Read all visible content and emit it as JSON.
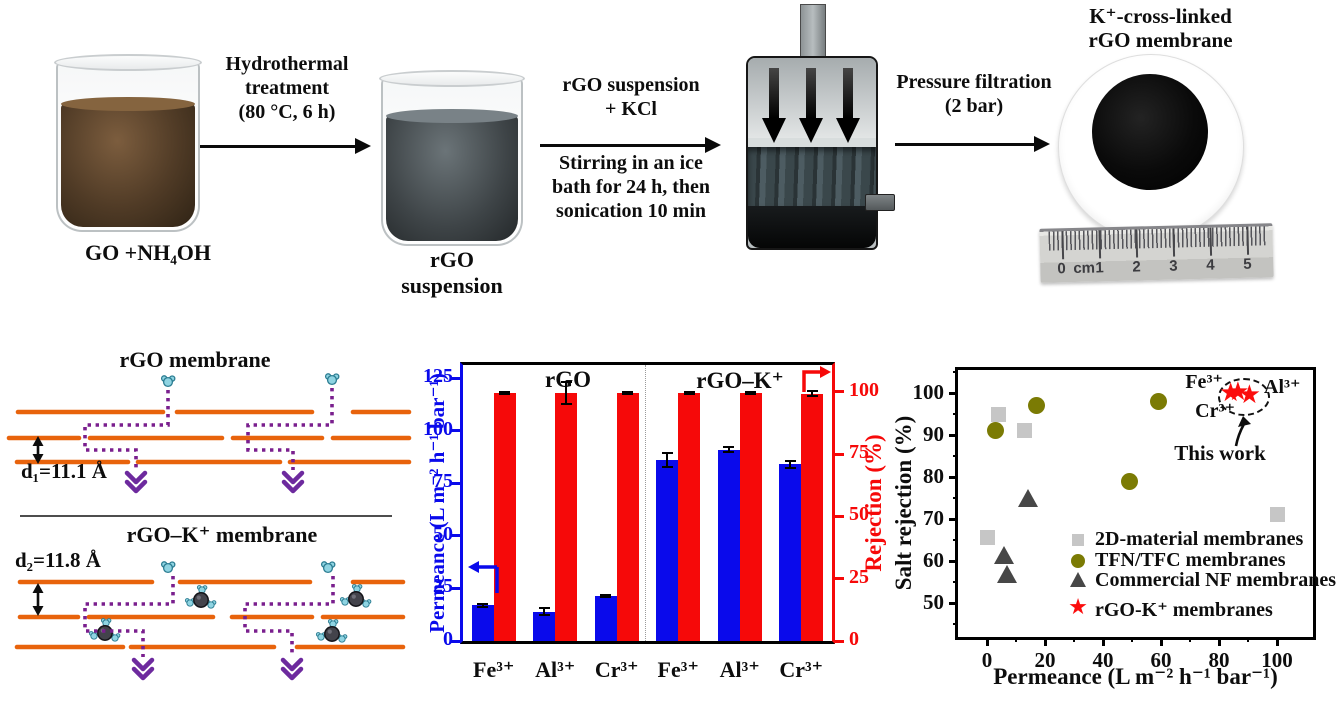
{
  "top_row": {
    "beaker1_label": "GO +NH₄OH",
    "arrow1_lines": [
      "Hydrothermal",
      "treatment",
      "(80 °C, 6 h)"
    ],
    "beaker2_label": "rGO suspension",
    "arrow2_top_lines": [
      "rGO suspension",
      "+  KCl"
    ],
    "arrow2_bottom_lines": [
      "Stirring in an ice",
      "bath for 24 h, then",
      "sonication 10 min"
    ],
    "arrow3_lines": [
      "Pressure filtration",
      "(2 bar)"
    ],
    "product_title_lines": [
      "K⁺-cross-linked",
      "rGO membrane"
    ],
    "ruler_labels": [
      "0",
      "cm",
      "1",
      "2",
      "3",
      "4",
      "5"
    ]
  },
  "schematic": {
    "top_title": "rGO membrane",
    "top_spacing_label": "d₁=11.1 Å",
    "bottom_title": "rGO–K⁺ membrane",
    "bottom_spacing_label": "d₂=11.8 Å",
    "colors": {
      "sheet_orange": "#e8630c",
      "path_purple": "#7a1f8e",
      "water_teal": "#8fd4e2",
      "potassium_dark": "#43434b"
    }
  },
  "chart_data": [
    {
      "id": "permeance-rejection-bars",
      "type": "bar",
      "group_labels": [
        "rGO",
        "rGO–K⁺"
      ],
      "categories": [
        "Fe³⁺",
        "Al³⁺",
        "Cr³⁺",
        "Fe³⁺",
        "Al³⁺",
        "Cr³⁺"
      ],
      "series": [
        {
          "name": "Permeance",
          "axis": "left",
          "color": "#0a0aeb",
          "values": [
            17,
            14,
            21.5,
            86,
            91,
            84
          ],
          "errors": [
            0.8,
            1.5,
            0.4,
            3.5,
            1.2,
            1.8
          ]
        },
        {
          "name": "Rejection",
          "axis": "right",
          "color": "#f60909",
          "values": [
            99.5,
            99.5,
            99.7,
            99.6,
            99.6,
            99.3
          ],
          "errors": [
            0.5,
            4.5,
            0.4,
            0.5,
            0.5,
            0.9
          ]
        }
      ],
      "left_axis": {
        "label": "Permeance (L m⁻² h⁻¹ bar⁻¹)",
        "ticks": [
          0,
          25,
          50,
          75,
          100,
          125
        ],
        "color": "#0a0aeb"
      },
      "right_axis": {
        "label": "Rejection (%)",
        "ticks": [
          0,
          25,
          50,
          75,
          100
        ],
        "color": "#f60909"
      },
      "grid": false
    },
    {
      "id": "performance-comparison-scatter",
      "type": "scatter",
      "xlabel": "Permeance (L m⁻² h⁻¹ bar⁻¹)",
      "ylabel": "Salt rejection (%)",
      "x_ticks": [
        0,
        20,
        40,
        60,
        80,
        100
      ],
      "y_ticks": [
        50,
        60,
        70,
        80,
        90,
        100
      ],
      "xlim": [
        -10,
        112
      ],
      "ylim": [
        42,
        106
      ],
      "legend_position": "inside-right",
      "grid": false,
      "series": [
        {
          "name": "2D-material membranes",
          "marker": "square",
          "color": "#c6c6c6",
          "points": [
            [
              0,
              65.5
            ],
            [
              4,
              95
            ],
            [
              13,
              91
            ],
            [
              100,
              71
            ]
          ]
        },
        {
          "name": "TFN/TFC membranes",
          "marker": "circle",
          "color": "#7b7b04",
          "points": [
            [
              3,
              91
            ],
            [
              17,
              97
            ],
            [
              49,
              79
            ],
            [
              59,
              98
            ]
          ]
        },
        {
          "name": "Commercial NF membranes",
          "marker": "triangle",
          "color": "#474747",
          "points": [
            [
              6,
              61
            ],
            [
              7,
              56.5
            ],
            [
              14,
              74.5
            ]
          ]
        },
        {
          "name": "rGO-K⁺ membranes",
          "marker": "star",
          "color": "#fb0d0d",
          "points": [
            [
              84,
              99.8
            ],
            [
              86.5,
              100
            ],
            [
              90.5,
              99.4
            ]
          ]
        }
      ],
      "annotation": {
        "point_labels": [
          "Fe³⁺",
          "Al³⁺",
          "Cr³⁺"
        ],
        "callout": "This work"
      }
    }
  ]
}
